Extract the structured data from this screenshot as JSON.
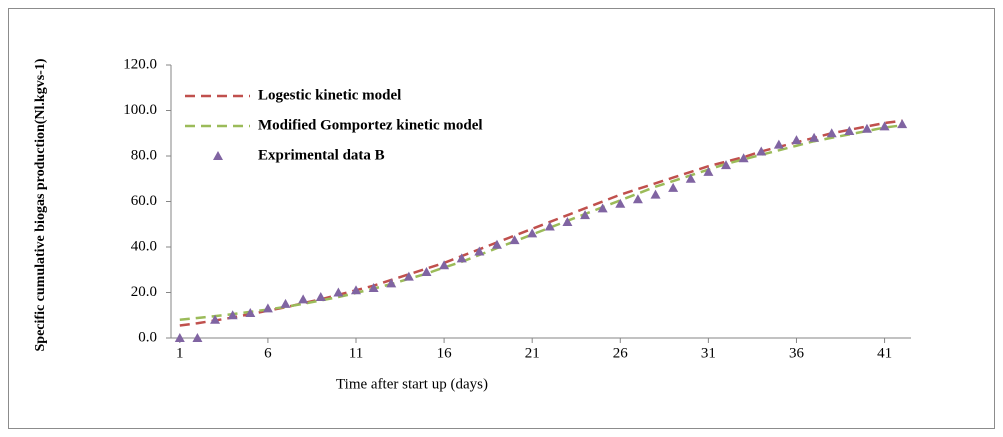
{
  "chart_data": {
    "type": "line",
    "x": [
      1,
      2,
      3,
      4,
      5,
      6,
      7,
      8,
      9,
      10,
      11,
      12,
      13,
      14,
      15,
      16,
      17,
      18,
      19,
      20,
      21,
      22,
      23,
      24,
      25,
      26,
      27,
      28,
      29,
      30,
      31,
      32,
      33,
      34,
      35,
      36,
      37,
      38,
      39,
      40,
      41,
      42
    ],
    "xlabel": "Time after start up (days)",
    "ylabel": "Specific cumulative biogas production(Nl.kgvs-1)",
    "xlim": [
      0.5,
      42.5
    ],
    "xticks": [
      1,
      6,
      11,
      16,
      21,
      26,
      31,
      36,
      41
    ],
    "ylim": [
      0,
      120
    ],
    "yticks": [
      {
        "value": 0,
        "label": "0.0"
      },
      {
        "value": 20,
        "label": "20.0"
      },
      {
        "value": 40,
        "label": "40.0"
      },
      {
        "value": 60,
        "label": "60.0"
      },
      {
        "value": 80,
        "label": "80.0"
      },
      {
        "value": 100,
        "label": "100.0"
      },
      {
        "value": 120,
        "label": "120.0"
      }
    ],
    "legend": "upper left",
    "series": [
      {
        "name": "Logestic kinetic model",
        "color": "#c0504d",
        "style": "dashed",
        "values": [
          5.5,
          6.5,
          7.7,
          9,
          10.5,
          12,
          13.5,
          15.3,
          17,
          19,
          21,
          23,
          25.5,
          28,
          30.5,
          33,
          36,
          39,
          42,
          45,
          48,
          51,
          54,
          57,
          60,
          63,
          65.5,
          68,
          70.5,
          73,
          75.5,
          77.5,
          79.5,
          82,
          84,
          86,
          88,
          90,
          91.5,
          93,
          94.5,
          95.5
        ]
      },
      {
        "name": "Modified Gomportez kinetic model",
        "color": "#9bbb59",
        "style": "dashed",
        "values": [
          8,
          8.8,
          9.6,
          10.5,
          11.5,
          12.5,
          13.7,
          15,
          16.5,
          18,
          19.8,
          21.7,
          23.7,
          26,
          28.3,
          31,
          33.5,
          36.5,
          39.5,
          42.5,
          45.5,
          48.5,
          51.5,
          54.5,
          57.5,
          60.5,
          63.5,
          66.5,
          69,
          71.5,
          74,
          76.5,
          78.5,
          80.5,
          82.5,
          84.5,
          86.5,
          88,
          89.5,
          91,
          92.5,
          93.5
        ]
      },
      {
        "name": "Exprimental data B",
        "color": "#8064a2",
        "style": "triangle",
        "values": [
          0,
          0,
          8,
          10,
          11,
          13,
          15,
          17,
          18,
          20,
          21,
          22,
          24,
          27,
          29,
          32,
          35,
          38,
          41,
          43,
          46,
          49,
          51,
          54,
          57,
          59,
          61,
          63,
          66,
          70,
          73,
          76,
          79,
          82,
          85,
          87,
          88,
          90,
          91,
          92,
          93,
          94
        ]
      }
    ]
  }
}
